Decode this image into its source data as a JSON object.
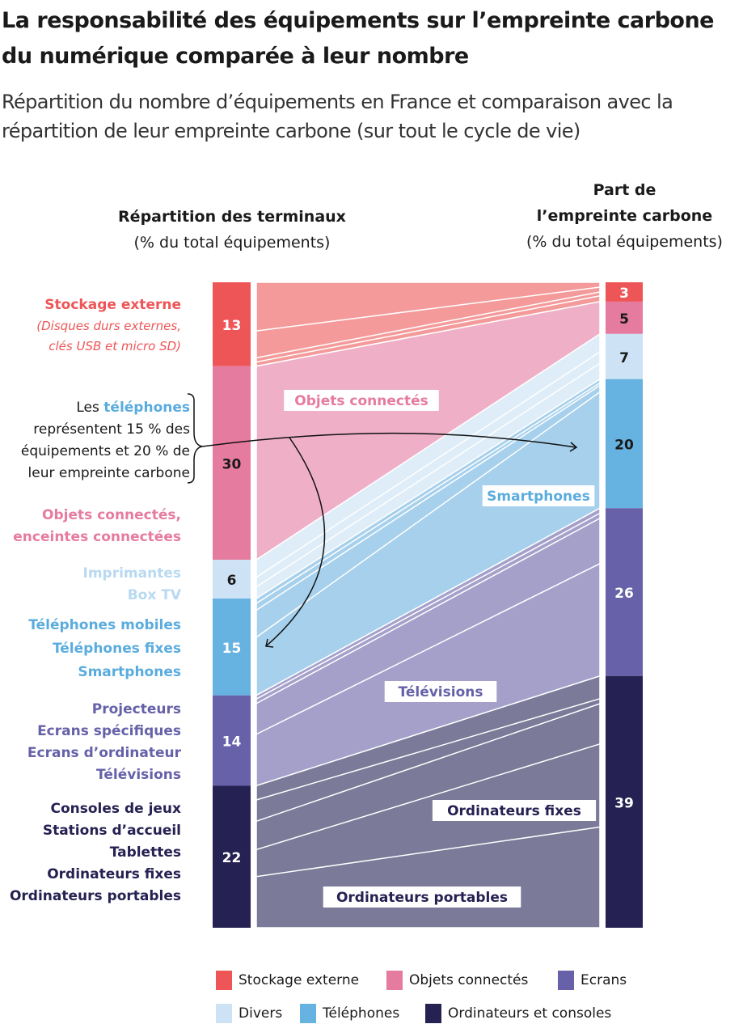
{
  "title": "La responsabilité des équipements sur l’empreinte carbone du numérique comparée à leur nombre",
  "subtitle": "Répartition du nombre d’équipements en France et comparaison avec la répartition de leur empreinte carbone (sur tout le cycle de vie)",
  "left_header": {
    "title": "Répartition des terminaux",
    "unit": "(% du total équipements)"
  },
  "right_header": {
    "title_line1": "Part de",
    "title_line2": "l’empreinte carbone",
    "unit": "(% du total équipements)"
  },
  "annotation": {
    "pre": "Les ",
    "highlight": "téléphones",
    "rest1": "représentent 15 % des",
    "rest2": "équipements et 20 % de",
    "rest3": "leur empreinte carbone"
  },
  "left_labels": {
    "stockage": {
      "title": "Stockage externe",
      "detail1": "(Disques durs externes,",
      "detail2": "clés USB et micro SD)"
    },
    "objets": [
      "Objets connectés,",
      "enceintes connectées"
    ],
    "divers": [
      "Imprimantes",
      "Box TV"
    ],
    "telephones": [
      "Téléphones mobiles",
      "Téléphones fixes",
      "Smartphones"
    ],
    "ecrans": [
      "Projecteurs",
      "Ecrans spécifiques",
      "Ecrans d’ordinateur",
      "Télévisions"
    ],
    "ordis": [
      "Consoles de jeux",
      "Stations d’accueil",
      "Tablettes",
      "Ordinateurs fixes",
      "Ordinateurs portables"
    ]
  },
  "flow_labels": {
    "objets": "Objets connectés",
    "smartphones": "Smartphones",
    "televisions": "Télévisions",
    "ordis_fixes": "Ordinateurs fixes",
    "ordis_portables": "Ordinateurs portables"
  },
  "chart_data": {
    "type": "alluvial",
    "categories": [
      "Stockage externe",
      "Objets connectés",
      "Divers",
      "Téléphones",
      "Ecrans",
      "Ordinateurs et consoles"
    ],
    "equipment_share_pct": [
      13,
      30,
      6,
      15,
      14,
      22
    ],
    "carbon_footprint_share_pct": [
      3,
      5,
      7,
      20,
      26,
      39
    ],
    "bar_colors": [
      "#ee5557",
      "#e67ba0",
      "#cde3f5",
      "#66b2e0",
      "#6661a8",
      "#252152"
    ],
    "flow_colors": [
      "#f49a9a",
      "#efb0c7",
      "#deedf8",
      "#a6d0ec",
      "#a4a0ca",
      "#7b7a98"
    ],
    "legend_placement": "bottom"
  },
  "legend": [
    "Stockage externe",
    "Objets connectés",
    "Ecrans",
    "Divers",
    "Téléphones",
    "Ordinateurs et consoles"
  ]
}
